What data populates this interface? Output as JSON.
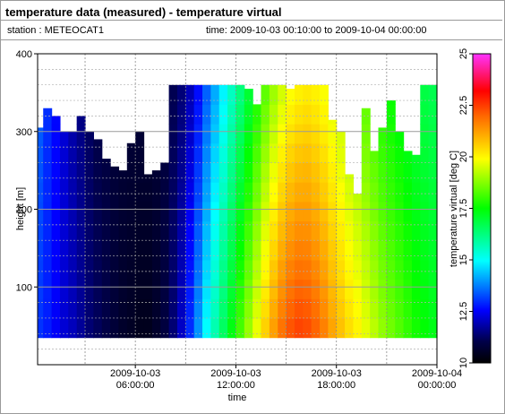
{
  "header": {
    "title": "temperature data (measured) - temperature virtual",
    "station": "station : METEOCAT1",
    "time_range": "time: 2009-10-03 00:10:00 to 2009-10-04 00:00:00"
  },
  "chart_data": {
    "type": "heatmap",
    "xlabel": "time",
    "ylabel": "height [m]",
    "colorbar_label": "temperature virtual [deg C]",
    "x_ticks": [
      "2009-10-03\n06:00:00",
      "2009-10-03\n12:00:00",
      "2009-10-03\n18:00:00",
      "2009-10-04\n00:00:00"
    ],
    "x_tick_hours": [
      6,
      12,
      18,
      24
    ],
    "xlim_hours": [
      0.1667,
      24
    ],
    "ylim": [
      0,
      400
    ],
    "y_ticks": [
      100,
      200,
      300,
      400
    ],
    "colorbar_range": [
      10,
      25
    ],
    "colorbar_ticks": [
      "10",
      "12.5",
      "15",
      "17.5",
      "20",
      "22.5",
      "25"
    ],
    "grid": true,
    "data_height_range": [
      35,
      360
    ],
    "time_hours": [
      0.5,
      1,
      1.5,
      2,
      2.5,
      3,
      3.5,
      4,
      4.5,
      5,
      5.5,
      6,
      6.5,
      7,
      7.5,
      8,
      8.5,
      9,
      9.5,
      10,
      10.5,
      11,
      11.5,
      12,
      12.5,
      13,
      13.5,
      14,
      14.5,
      15,
      15.5,
      16,
      16.5,
      17,
      17.5,
      18,
      18.5,
      19,
      19.5,
      20,
      20.5,
      21,
      21.5,
      22,
      22.5,
      23,
      23.5,
      24
    ],
    "top_heights": [
      305,
      330,
      320,
      300,
      300,
      320,
      300,
      290,
      265,
      255,
      250,
      285,
      300,
      245,
      250,
      260,
      360,
      360,
      360,
      360,
      360,
      360,
      360,
      360,
      360,
      355,
      335,
      360,
      360,
      360,
      355,
      360,
      360,
      360,
      360,
      315,
      300,
      245,
      220,
      330,
      275,
      305,
      340,
      300,
      275,
      270,
      360,
      360
    ],
    "surface_temp": [
      13.0,
      12.8,
      12.5,
      12.2,
      12.0,
      11.7,
      11.4,
      11.2,
      11.0,
      10.8,
      10.6,
      10.5,
      10.4,
      10.4,
      10.6,
      10.9,
      11.4,
      12.1,
      13.0,
      14.0,
      15.0,
      15.8,
      16.6,
      17.4,
      18.2,
      19.0,
      19.8,
      20.6,
      21.3,
      21.9,
      22.3,
      22.5,
      22.4,
      22.1,
      21.7,
      21.2,
      20.8,
      20.4,
      20.1,
      19.7,
      19.3,
      18.9,
      18.6,
      18.3,
      18.0,
      17.7,
      17.5,
      17.3
    ],
    "top_temp": [
      13.5,
      13.0,
      12.6,
      12.2,
      11.8,
      11.5,
      11.2,
      11.0,
      10.9,
      10.8,
      10.8,
      10.8,
      10.8,
      10.8,
      10.8,
      10.9,
      11.1,
      11.4,
      11.9,
      12.6,
      13.4,
      14.1,
      14.8,
      15.5,
      16.2,
      16.9,
      17.6,
      18.3,
      18.9,
      19.4,
      19.8,
      20.0,
      20.1,
      20.0,
      19.8,
      19.5,
      19.2,
      18.9,
      18.6,
      18.3,
      18.0,
      17.7,
      17.5,
      17.3,
      17.1,
      16.9,
      16.8,
      16.7
    ]
  }
}
